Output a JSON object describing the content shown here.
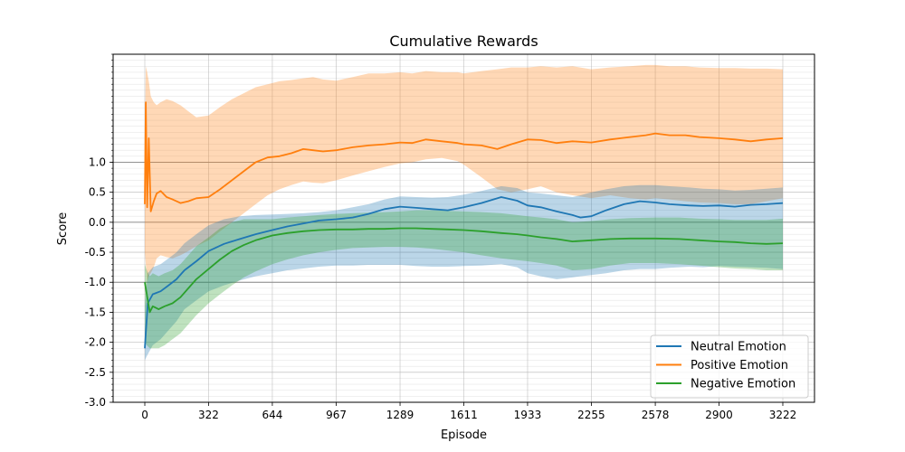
{
  "chart_data": {
    "type": "line",
    "title": "Cumulative Rewards",
    "xlabel": "Episode",
    "ylabel": "Score",
    "xlim": [
      -160,
      3382
    ],
    "ylim": [
      -3.0,
      2.8
    ],
    "xticks": [
      0,
      322,
      644,
      967,
      1289,
      1611,
      1933,
      2255,
      2578,
      2900,
      3222
    ],
    "yticks": [
      -3.0,
      -2.5,
      -2.0,
      -1.5,
      -1.0,
      -0.5,
      0.0,
      0.5,
      1.0
    ],
    "hlines": [
      1.0,
      0.0,
      -1.0
    ],
    "grid": true,
    "legend_position": "lower-right",
    "series": [
      {
        "name": "Neutral Emotion",
        "color": "#1f77b4",
        "x": [
          0,
          15,
          40,
          80,
          120,
          160,
          200,
          260,
          322,
          400,
          480,
          560,
          644,
          720,
          800,
          880,
          967,
          1050,
          1130,
          1210,
          1289,
          1370,
          1450,
          1530,
          1611,
          1700,
          1800,
          1880,
          1933,
          2000,
          2080,
          2160,
          2200,
          2255,
          2330,
          2420,
          2500,
          2578,
          2650,
          2750,
          2820,
          2900,
          2980,
          3060,
          3140,
          3222
        ],
        "mean": [
          -2.1,
          -1.35,
          -1.2,
          -1.15,
          -1.05,
          -0.95,
          -0.8,
          -0.65,
          -0.48,
          -0.36,
          -0.28,
          -0.2,
          -0.13,
          -0.07,
          -0.02,
          0.03,
          0.05,
          0.08,
          0.14,
          0.22,
          0.26,
          0.24,
          0.22,
          0.2,
          0.25,
          0.32,
          0.42,
          0.36,
          0.28,
          0.25,
          0.18,
          0.12,
          0.08,
          0.1,
          0.2,
          0.3,
          0.35,
          0.33,
          0.3,
          0.28,
          0.27,
          0.28,
          0.26,
          0.29,
          0.3,
          0.32
        ],
        "upper": [
          -1.4,
          -0.85,
          -0.75,
          -0.7,
          -0.6,
          -0.5,
          -0.35,
          -0.2,
          -0.05,
          0.05,
          0.1,
          0.12,
          0.13,
          0.14,
          0.15,
          0.17,
          0.2,
          0.25,
          0.3,
          0.38,
          0.43,
          0.42,
          0.41,
          0.42,
          0.46,
          0.52,
          0.6,
          0.57,
          0.5,
          0.48,
          0.45,
          0.42,
          0.45,
          0.5,
          0.55,
          0.6,
          0.62,
          0.62,
          0.6,
          0.58,
          0.56,
          0.55,
          0.53,
          0.54,
          0.56,
          0.58
        ],
        "lower": [
          -2.3,
          -2.2,
          -2.05,
          -1.95,
          -1.8,
          -1.65,
          -1.45,
          -1.3,
          -1.15,
          -1.05,
          -0.97,
          -0.9,
          -0.85,
          -0.8,
          -0.77,
          -0.74,
          -0.72,
          -0.72,
          -0.71,
          -0.71,
          -0.71,
          -0.73,
          -0.74,
          -0.74,
          -0.73,
          -0.72,
          -0.7,
          -0.75,
          -0.85,
          -0.9,
          -0.95,
          -0.92,
          -0.9,
          -0.88,
          -0.85,
          -0.8,
          -0.78,
          -0.78,
          -0.76,
          -0.74,
          -0.75,
          -0.73,
          -0.74,
          -0.75,
          -0.76,
          -0.78
        ]
      },
      {
        "name": "Positive Emotion",
        "color": "#ff7f0e",
        "x": [
          0,
          5,
          12,
          20,
          30,
          45,
          60,
          80,
          110,
          140,
          180,
          220,
          260,
          322,
          380,
          440,
          500,
          560,
          620,
          680,
          740,
          800,
          850,
          900,
          967,
          1050,
          1130,
          1210,
          1289,
          1350,
          1420,
          1500,
          1580,
          1611,
          1700,
          1780,
          1850,
          1933,
          2000,
          2080,
          2160,
          2255,
          2350,
          2450,
          2530,
          2578,
          2650,
          2730,
          2800,
          2900,
          2980,
          3060,
          3140,
          3222
        ],
        "mean": [
          0.3,
          2.0,
          0.25,
          1.4,
          0.18,
          0.35,
          0.48,
          0.52,
          0.42,
          0.38,
          0.32,
          0.35,
          0.4,
          0.42,
          0.55,
          0.7,
          0.85,
          1.0,
          1.08,
          1.1,
          1.15,
          1.22,
          1.2,
          1.18,
          1.2,
          1.25,
          1.28,
          1.3,
          1.33,
          1.32,
          1.38,
          1.35,
          1.32,
          1.3,
          1.28,
          1.22,
          1.3,
          1.38,
          1.37,
          1.32,
          1.35,
          1.33,
          1.38,
          1.42,
          1.45,
          1.48,
          1.45,
          1.45,
          1.42,
          1.4,
          1.38,
          1.35,
          1.38,
          1.4
        ],
        "upper": [
          1.4,
          2.6,
          2.5,
          2.35,
          2.1,
          2.0,
          1.95,
          2.0,
          2.05,
          2.02,
          1.95,
          1.85,
          1.75,
          1.78,
          1.92,
          2.05,
          2.15,
          2.25,
          2.3,
          2.35,
          2.37,
          2.4,
          2.42,
          2.38,
          2.36,
          2.42,
          2.48,
          2.48,
          2.5,
          2.48,
          2.52,
          2.5,
          2.5,
          2.48,
          2.52,
          2.55,
          2.58,
          2.58,
          2.6,
          2.58,
          2.6,
          2.55,
          2.58,
          2.6,
          2.62,
          2.62,
          2.6,
          2.6,
          2.58,
          2.57,
          2.57,
          2.56,
          2.56,
          2.55
        ],
        "lower": [
          -0.5,
          -0.7,
          -1.0,
          -0.9,
          -0.85,
          -0.75,
          -0.6,
          -0.55,
          -0.58,
          -0.6,
          -0.55,
          -0.48,
          -0.4,
          -0.3,
          -0.15,
          0.0,
          0.15,
          0.3,
          0.45,
          0.55,
          0.62,
          0.68,
          0.66,
          0.65,
          0.7,
          0.78,
          0.85,
          0.92,
          0.98,
          1.0,
          1.05,
          1.07,
          1.02,
          0.96,
          0.75,
          0.55,
          0.5,
          0.55,
          0.6,
          0.5,
          0.45,
          0.4,
          0.45,
          0.4,
          0.38,
          0.4,
          0.38,
          0.35,
          0.33,
          0.32,
          0.3,
          0.3,
          0.35,
          0.4
        ]
      },
      {
        "name": "Negative Emotion",
        "color": "#2ca02c",
        "x": [
          0,
          10,
          25,
          40,
          70,
          100,
          140,
          180,
          220,
          260,
          322,
          380,
          440,
          500,
          560,
          644,
          720,
          800,
          880,
          967,
          1050,
          1130,
          1210,
          1289,
          1370,
          1450,
          1530,
          1611,
          1700,
          1800,
          1880,
          1933,
          2000,
          2080,
          2160,
          2255,
          2350,
          2450,
          2578,
          2700,
          2800,
          2900,
          2980,
          3060,
          3140,
          3222
        ],
        "mean": [
          -1.0,
          -1.2,
          -1.5,
          -1.4,
          -1.45,
          -1.4,
          -1.35,
          -1.25,
          -1.1,
          -0.95,
          -0.78,
          -0.62,
          -0.48,
          -0.38,
          -0.3,
          -0.22,
          -0.18,
          -0.15,
          -0.13,
          -0.12,
          -0.12,
          -0.11,
          -0.11,
          -0.1,
          -0.1,
          -0.11,
          -0.12,
          -0.13,
          -0.15,
          -0.18,
          -0.2,
          -0.22,
          -0.25,
          -0.28,
          -0.32,
          -0.3,
          -0.28,
          -0.27,
          -0.27,
          -0.28,
          -0.3,
          -0.32,
          -0.33,
          -0.35,
          -0.36,
          -0.35
        ],
        "upper": [
          -0.7,
          -0.8,
          -0.9,
          -0.85,
          -0.9,
          -0.85,
          -0.8,
          -0.7,
          -0.55,
          -0.4,
          -0.25,
          -0.1,
          0.0,
          0.05,
          0.05,
          0.05,
          0.08,
          0.1,
          0.12,
          0.14,
          0.15,
          0.16,
          0.17,
          0.18,
          0.2,
          0.2,
          0.19,
          0.18,
          0.17,
          0.15,
          0.12,
          0.1,
          0.08,
          0.05,
          0.0,
          0.02,
          0.05,
          0.07,
          0.08,
          0.08,
          0.06,
          0.05,
          0.04,
          0.04,
          0.04,
          0.06
        ],
        "lower": [
          -2.0,
          -2.05,
          -2.1,
          -2.1,
          -2.1,
          -2.05,
          -1.95,
          -1.85,
          -1.7,
          -1.55,
          -1.35,
          -1.2,
          -1.05,
          -0.92,
          -0.82,
          -0.7,
          -0.62,
          -0.55,
          -0.5,
          -0.46,
          -0.43,
          -0.42,
          -0.41,
          -0.41,
          -0.42,
          -0.44,
          -0.47,
          -0.5,
          -0.55,
          -0.6,
          -0.63,
          -0.65,
          -0.68,
          -0.72,
          -0.8,
          -0.78,
          -0.72,
          -0.68,
          -0.68,
          -0.7,
          -0.72,
          -0.75,
          -0.77,
          -0.78,
          -0.8,
          -0.8
        ]
      }
    ]
  }
}
